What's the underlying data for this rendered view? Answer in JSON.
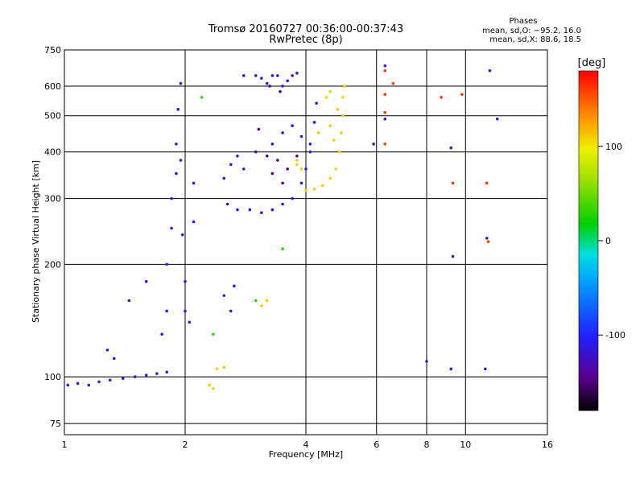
{
  "chart_data": {
    "type": "scatter",
    "title_line1": "Tromsø 20160727 00:36:00-00:37:43",
    "title_line2": "RwPretec (8p)",
    "xlabel": "Frequency [MHz]",
    "ylabel": "Stationary phase Virtual Height [km]",
    "x_scale": "log2",
    "y_scale": "log",
    "xlim": [
      1,
      16
    ],
    "ylim": [
      70,
      750
    ],
    "x_ticks": [
      1,
      2,
      4,
      6,
      8,
      10,
      16
    ],
    "y_ticks": [
      75,
      100,
      200,
      300,
      400,
      500,
      600,
      750
    ],
    "grid": true,
    "stats": {
      "title": "Phases",
      "line_o": "mean, sd,O: −95.2, 16.0",
      "line_x": "mean, sd,X:  88.6, 18.5"
    },
    "colorbar": {
      "title": "[deg]",
      "range": [
        -180,
        180
      ],
      "ticks": [
        100,
        0,
        -100
      ]
    },
    "series": [
      {
        "color_value": -110,
        "points": [
          [
            1.02,
            95
          ],
          [
            1.08,
            96
          ],
          [
            1.15,
            95
          ],
          [
            1.22,
            97
          ],
          [
            1.3,
            98
          ],
          [
            1.4,
            99
          ],
          [
            1.5,
            100
          ],
          [
            1.6,
            101
          ],
          [
            1.7,
            102
          ],
          [
            1.8,
            103
          ],
          [
            1.33,
            112
          ],
          [
            1.28,
            118
          ],
          [
            1.45,
            160
          ],
          [
            1.6,
            180
          ],
          [
            1.75,
            130
          ],
          [
            1.8,
            150
          ],
          [
            1.8,
            200
          ],
          [
            1.85,
            250
          ],
          [
            1.85,
            300
          ],
          [
            1.9,
            350
          ],
          [
            1.9,
            420
          ],
          [
            1.92,
            520
          ],
          [
            1.95,
            610
          ],
          [
            1.95,
            380
          ],
          [
            1.97,
            240
          ],
          [
            2.0,
            180
          ],
          [
            2.0,
            150
          ],
          [
            2.05,
            140
          ],
          [
            2.1,
            260
          ],
          [
            2.1,
            330
          ],
          [
            2.5,
            165
          ],
          [
            2.6,
            150
          ],
          [
            2.65,
            175
          ],
          [
            2.5,
            340
          ],
          [
            2.6,
            370
          ],
          [
            2.7,
            390
          ],
          [
            2.8,
            360
          ],
          [
            2.55,
            290
          ],
          [
            2.7,
            280
          ],
          [
            2.9,
            280
          ],
          [
            3.1,
            275
          ],
          [
            3.3,
            280
          ],
          [
            3.5,
            290
          ],
          [
            3.7,
            300
          ],
          [
            3.9,
            330
          ],
          [
            4.0,
            360
          ],
          [
            4.1,
            400
          ],
          [
            4.2,
            480
          ],
          [
            4.25,
            540
          ],
          [
            2.8,
            640
          ],
          [
            3.0,
            640
          ],
          [
            3.1,
            630
          ],
          [
            3.2,
            610
          ],
          [
            3.3,
            640
          ],
          [
            3.4,
            640
          ],
          [
            3.5,
            600
          ],
          [
            3.6,
            620
          ],
          [
            3.7,
            640
          ],
          [
            3.8,
            650
          ],
          [
            3.3,
            420
          ],
          [
            3.5,
            450
          ],
          [
            3.7,
            470
          ],
          [
            3.9,
            440
          ],
          [
            4.1,
            420
          ]
        ]
      },
      {
        "color_value": -145,
        "points": [
          [
            3.0,
            400
          ],
          [
            3.2,
            390
          ],
          [
            3.4,
            380
          ],
          [
            3.6,
            360
          ],
          [
            3.3,
            350
          ],
          [
            3.5,
            330
          ],
          [
            3.8,
            390
          ],
          [
            3.05,
            460
          ],
          [
            3.25,
            600
          ],
          [
            3.45,
            580
          ]
        ]
      },
      {
        "color_value": 110,
        "points": [
          [
            4.0,
            315
          ],
          [
            4.2,
            318
          ],
          [
            4.4,
            325
          ],
          [
            4.6,
            340
          ],
          [
            4.75,
            360
          ],
          [
            4.85,
            400
          ],
          [
            4.9,
            450
          ],
          [
            4.95,
            500
          ],
          [
            4.95,
            560
          ],
          [
            4.8,
            520
          ],
          [
            4.6,
            470
          ],
          [
            4.7,
            430
          ],
          [
            3.8,
            370
          ],
          [
            3.9,
            360
          ],
          [
            2.4,
            105
          ],
          [
            2.5,
            106
          ],
          [
            2.3,
            95
          ],
          [
            2.35,
            93
          ],
          [
            3.1,
            155
          ],
          [
            3.2,
            160
          ],
          [
            4.6,
            580
          ],
          [
            5.0,
            600
          ],
          [
            3.8,
            380
          ],
          [
            4.3,
            450
          ],
          [
            4.5,
            560
          ]
        ]
      },
      {
        "color_value": 30,
        "points": [
          [
            2.2,
            560
          ],
          [
            3.5,
            220
          ],
          [
            3.0,
            160
          ],
          [
            2.35,
            130
          ]
        ]
      },
      {
        "color_value": 160,
        "points": [
          [
            6.3,
            570
          ],
          [
            6.3,
            510
          ],
          [
            6.3,
            420
          ],
          [
            6.6,
            610
          ],
          [
            6.3,
            660
          ],
          [
            8.7,
            560
          ],
          [
            9.3,
            330
          ],
          [
            9.8,
            570
          ],
          [
            11.3,
            330
          ],
          [
            11.4,
            230
          ]
        ]
      },
      {
        "color_value": -120,
        "points": [
          [
            6.3,
            680
          ],
          [
            6.3,
            490
          ],
          [
            8.0,
            110
          ],
          [
            9.2,
            410
          ],
          [
            9.3,
            210
          ],
          [
            9.2,
            105
          ],
          [
            11.2,
            105
          ],
          [
            11.5,
            660
          ],
          [
            12.0,
            490
          ],
          [
            5.9,
            420
          ],
          [
            11.3,
            235
          ]
        ]
      }
    ]
  }
}
